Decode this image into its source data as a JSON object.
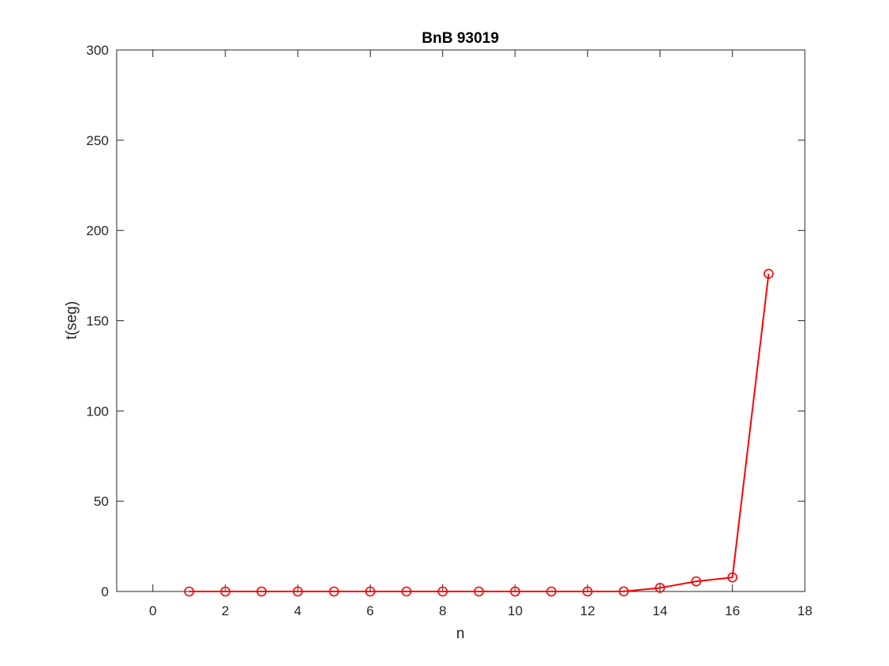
{
  "chart_data": {
    "type": "line",
    "title": "BnB 93019",
    "xlabel": "n",
    "ylabel": "t(seg)",
    "xlim": [
      -1,
      18
    ],
    "ylim": [
      0,
      300
    ],
    "xticks": [
      0,
      2,
      4,
      6,
      8,
      10,
      12,
      14,
      16,
      18
    ],
    "yticks": [
      0,
      50,
      100,
      150,
      200,
      250,
      300
    ],
    "grid": false,
    "series": [
      {
        "color": "#ff0000",
        "marker": "circle",
        "x": [
          1,
          2,
          3,
          4,
          5,
          6,
          7,
          8,
          9,
          10,
          11,
          12,
          13,
          14,
          15,
          16,
          17
        ],
        "values": [
          0,
          0,
          0,
          0,
          0,
          0,
          0,
          0,
          0,
          0,
          0,
          0,
          0.05,
          2.0,
          5.6,
          7.8,
          176
        ]
      }
    ]
  }
}
